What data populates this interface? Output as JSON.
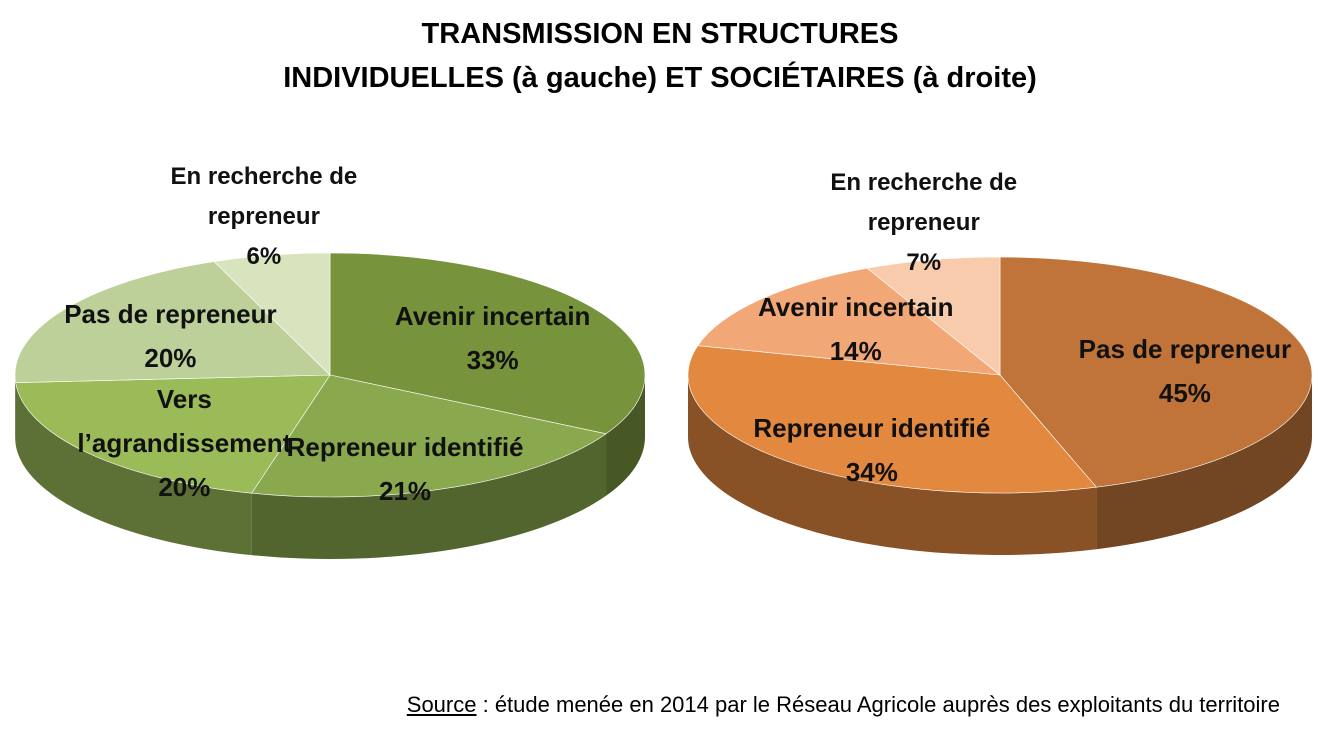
{
  "title": [
    "TRANSMISSION EN STRUCTURES",
    "INDIVIDUELLES (à gauche) ET SOCIÉTAIRES (à droite)"
  ],
  "source": {
    "label": "Source",
    "text": " : étude menée en 2014 par le Réseau Agricole auprès des exploitants du territoire"
  },
  "chart_data": [
    {
      "type": "pie",
      "categories": [
        "Avenir incertain",
        "Repreneur identifié",
        "Vers l’agrandissement",
        "Pas de repreneur",
        "En recherche de repreneur"
      ],
      "values": [
        33,
        21,
        20,
        20,
        6
      ],
      "value_labels": [
        "33%",
        "21%",
        "20%",
        "20%",
        "6%"
      ],
      "colors": [
        "#77933c",
        "#8aa84e",
        "#9bbb59",
        "#bdd09a",
        "#d7e4bd"
      ]
    },
    {
      "type": "pie",
      "categories": [
        "Pas de repreneur",
        "Repreneur identifié",
        "Avenir incertain",
        "En recherche de repreneur"
      ],
      "values": [
        45,
        34,
        14,
        7
      ],
      "value_labels": [
        "45%",
        "34%",
        "14%",
        "7%"
      ],
      "colors": [
        "#c0743a",
        "#e3893f",
        "#f2a777",
        "#f8cbad"
      ]
    }
  ]
}
